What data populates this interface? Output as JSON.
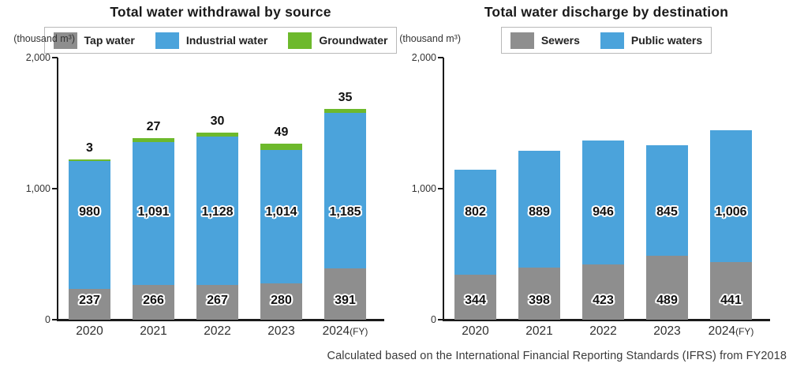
{
  "page": {
    "footnote": "Calculated based on the International Financial Reporting Standards (IFRS) from FY2018"
  },
  "chart_data": [
    {
      "type": "bar",
      "stacked": true,
      "title": "Total water withdrawal by source",
      "unit_label": "(thousand m³)",
      "categories": [
        "2020",
        "2021",
        "2022",
        "2023",
        "2024"
      ],
      "category_suffix": "(FY)",
      "ylim": [
        0,
        2000
      ],
      "yticks": [
        {
          "value": 0,
          "label": "0"
        },
        {
          "value": 1000,
          "label": "1,000"
        },
        {
          "value": 2000,
          "label": "2,000"
        }
      ],
      "grid": false,
      "legend_position": "top",
      "series": [
        {
          "name": "Tap water",
          "color": "#8e8e8e",
          "label_position": "inside",
          "values": [
            237,
            266,
            267,
            280,
            391
          ]
        },
        {
          "name": "Industrial water",
          "color": "#4ba3db",
          "label_position": "inside",
          "values": [
            980,
            1091,
            1128,
            1014,
            1185
          ]
        },
        {
          "name": "Groundwater",
          "color": "#6db92c",
          "label_position": "above",
          "values": [
            3,
            27,
            30,
            49,
            35
          ]
        }
      ]
    },
    {
      "type": "bar",
      "stacked": true,
      "title": "Total water discharge by destination",
      "unit_label": "(thousand m³)",
      "categories": [
        "2020",
        "2021",
        "2022",
        "2023",
        "2024"
      ],
      "category_suffix": "(FY)",
      "ylim": [
        0,
        2000
      ],
      "yticks": [
        {
          "value": 0,
          "label": "0"
        },
        {
          "value": 1000,
          "label": "1,000"
        },
        {
          "value": 2000,
          "label": "2,000"
        }
      ],
      "grid": false,
      "legend_position": "top",
      "series": [
        {
          "name": "Sewers",
          "color": "#8e8e8e",
          "label_position": "inside",
          "values": [
            344,
            398,
            423,
            489,
            441
          ]
        },
        {
          "name": "Public waters",
          "color": "#4ba3db",
          "label_position": "inside",
          "values": [
            802,
            889,
            946,
            845,
            1006
          ]
        }
      ]
    }
  ],
  "colors": {
    "tap_gray": "#8e8e8e",
    "industrial_blue": "#4ba3db",
    "groundwater_green": "#6db92c",
    "axis": "#1a1a1a",
    "text": "#333333",
    "legend_border": "#b9b9b9"
  }
}
